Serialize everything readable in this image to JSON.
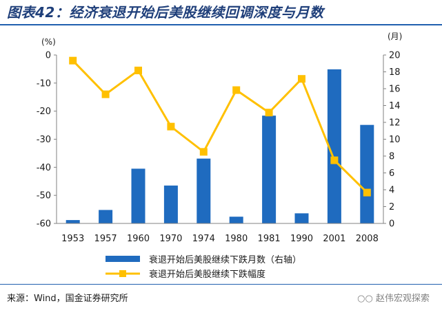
{
  "title": "图表42：经济衰退开始后美股继续回调深度与月数",
  "source": "来源：Wind，国金证券研究所",
  "watermark": "赵伟宏观探索",
  "colors": {
    "bar": "#1f6bbf",
    "line": "#ffc000",
    "title": "#1f3f7a",
    "rule": "#1f5fae"
  },
  "chart_data": {
    "type": "bar+line",
    "categories": [
      "1953",
      "1957",
      "1960",
      "1970",
      "1974",
      "1980",
      "1981",
      "1990",
      "2001",
      "2008"
    ],
    "left_axis": {
      "unit": "(%)",
      "ylim": [
        -60,
        0
      ],
      "ticks": [
        0,
        -10,
        -20,
        -30,
        -40,
        -50,
        -60
      ]
    },
    "right_axis": {
      "unit": "(月)",
      "ylim": [
        0,
        20
      ],
      "ticks": [
        0,
        2,
        4,
        6,
        8,
        10,
        12,
        14,
        16,
        18,
        20
      ]
    },
    "series": [
      {
        "name": "衰退开始后美股继续下跌月数（右轴）",
        "type": "bar",
        "axis": "right",
        "values": [
          0.4,
          1.6,
          6.5,
          4.5,
          7.7,
          0.8,
          12.8,
          1.2,
          18.3,
          11.7
        ]
      },
      {
        "name": "衰退开始后美股继续下跌幅度",
        "type": "line",
        "axis": "left",
        "values": [
          -2,
          -14,
          -5.5,
          -25.5,
          -34.5,
          -12.5,
          -20.5,
          -8.5,
          -37.5,
          -49
        ]
      }
    ],
    "grid": false,
    "legend_position": "bottom"
  }
}
